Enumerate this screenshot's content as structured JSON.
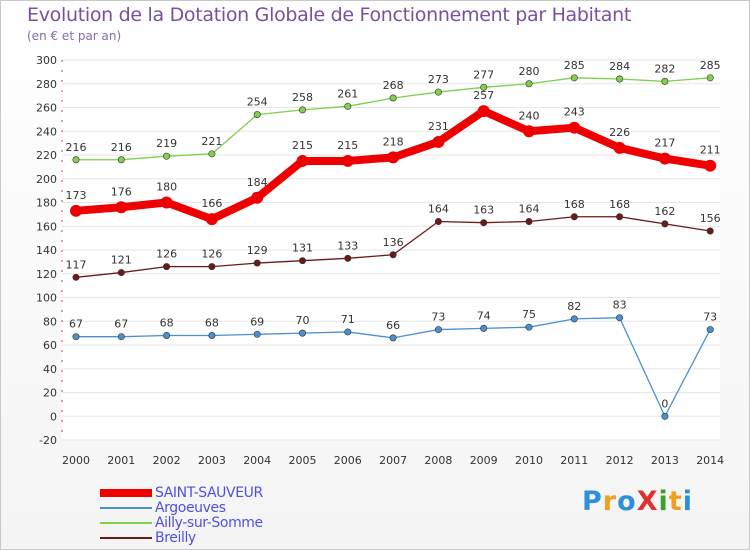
{
  "chart_data": {
    "type": "line",
    "title": "Evolution de la Dotation Globale de Fonctionnement par Habitant",
    "subtitle": "(en € et par an)",
    "xlabel": "",
    "ylabel": "",
    "ylim": [
      -20,
      300
    ],
    "ytick_step": 20,
    "grid": true,
    "legend_position": "bottom-left",
    "categories": [
      "2000",
      "2001",
      "2002",
      "2003",
      "2004",
      "2005",
      "2006",
      "2007",
      "2008",
      "2009",
      "2010",
      "2011",
      "2012",
      "2013",
      "2014"
    ],
    "series": [
      {
        "name": "Ailly-sur-Somme",
        "color": "#7fd04b",
        "values": [
          216,
          216,
          219,
          221,
          254,
          258,
          261,
          268,
          273,
          277,
          280,
          285,
          284,
          282,
          285
        ]
      },
      {
        "name": "SAINT-SAUVEUR",
        "color": "#ee0000",
        "values": [
          173,
          176,
          180,
          166,
          184,
          215,
          215,
          218,
          231,
          257,
          240,
          243,
          226,
          217,
          211
        ]
      },
      {
        "name": "Breilly",
        "color": "#6b1a1a",
        "values": [
          117,
          121,
          126,
          126,
          129,
          131,
          133,
          136,
          164,
          163,
          164,
          168,
          168,
          162,
          156
        ]
      },
      {
        "name": "Argoeuves",
        "color": "#4a90d0",
        "values": [
          67,
          67,
          68,
          68,
          69,
          70,
          71,
          66,
          73,
          74,
          75,
          82,
          83,
          0,
          73
        ]
      }
    ],
    "legend_order": [
      "SAINT-SAUVEUR",
      "Argoeuves",
      "Ailly-sur-Somme",
      "Breilly"
    ]
  },
  "logo": {
    "text": "ProXiti",
    "colors": [
      "#2f8fd8",
      "#f0a020",
      "#2f8fd8",
      "#e03030",
      "#3aa030",
      "#f0a020",
      "#2f8fd8"
    ]
  }
}
